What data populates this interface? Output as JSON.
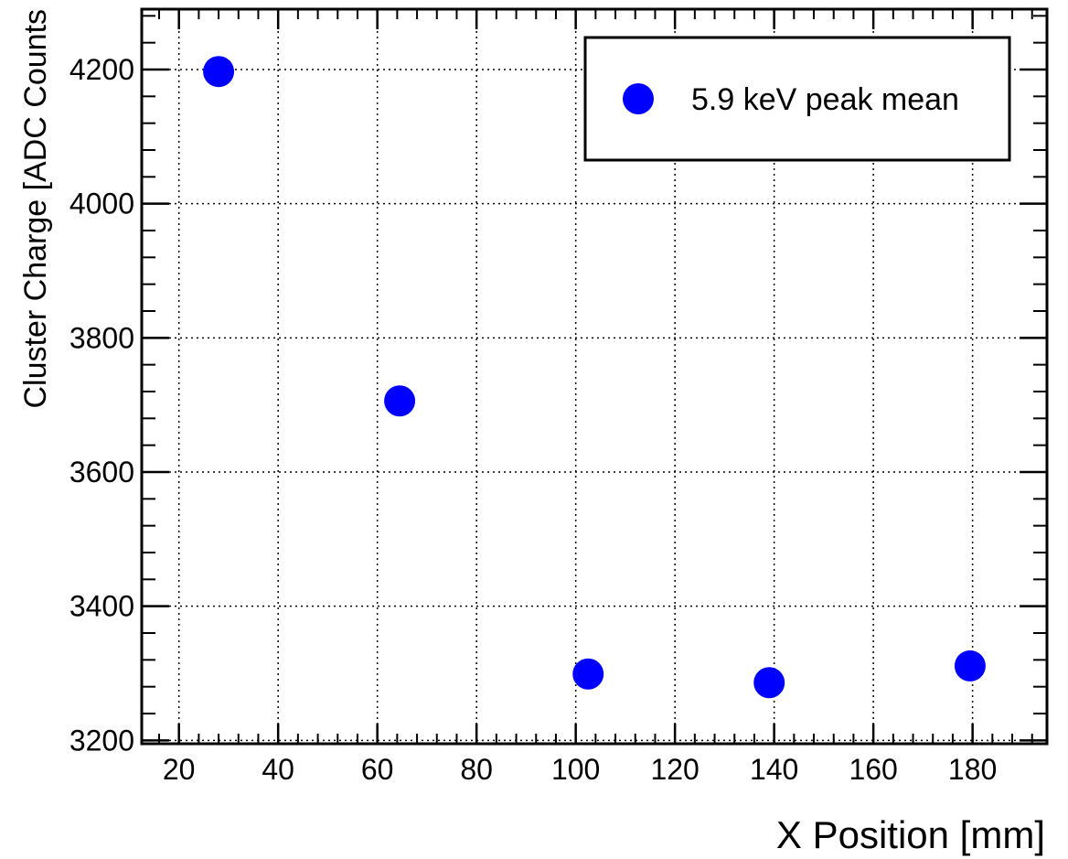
{
  "chart_data": {
    "type": "scatter",
    "title": "",
    "xlabel": "X Position [mm]",
    "ylabel": "Cluster Charge [ADC Counts",
    "xlim": [
      12.5,
      195
    ],
    "ylim": [
      3195,
      4290
    ],
    "x_ticks": [
      20,
      40,
      60,
      80,
      100,
      120,
      140,
      160,
      180
    ],
    "y_ticks": [
      3200,
      3400,
      3600,
      3800,
      4000,
      4200
    ],
    "grid": true,
    "legend_position": "top-right",
    "series": [
      {
        "name": "5.9 keV peak mean",
        "color": "#0000ff",
        "marker": "circle",
        "points": [
          {
            "x": 28,
            "y": 4197
          },
          {
            "x": 64.5,
            "y": 3706
          },
          {
            "x": 102.5,
            "y": 3299
          },
          {
            "x": 139,
            "y": 3286
          },
          {
            "x": 179.5,
            "y": 3311
          }
        ]
      }
    ]
  }
}
